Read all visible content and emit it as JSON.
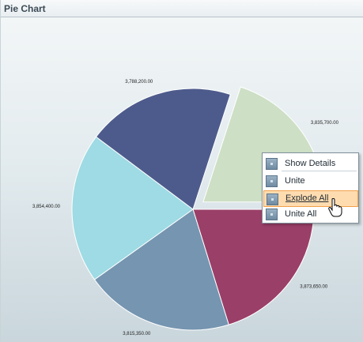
{
  "panel": {
    "title": "Pie Chart"
  },
  "chart_data": {
    "type": "pie",
    "slices": [
      {
        "label": "3,835,700.00",
        "value": 3835700,
        "color": "#cddfc5",
        "exploded": true
      },
      {
        "label": "3,873,650.00",
        "value": 3873650,
        "color": "#9a3f68",
        "exploded": false
      },
      {
        "label": "3,815,350.00",
        "value": 3815350,
        "color": "#7595b0",
        "exploded": false
      },
      {
        "label": "3,854,400.00",
        "value": 3854400,
        "color": "#9edbe4",
        "exploded": false
      },
      {
        "label": "3,788,200.00",
        "value": 3788200,
        "color": "#4d5b8c",
        "exploded": false
      }
    ]
  },
  "context_menu": {
    "items": [
      {
        "label": "Show Details",
        "icon": "show-details-icon",
        "highlighted": false
      },
      {
        "label": "Unite",
        "icon": "unite-icon",
        "highlighted": false
      },
      {
        "label": "Explode All",
        "icon": "explode-all-icon",
        "highlighted": true
      },
      {
        "label": "Unite All",
        "icon": "unite-all-icon",
        "highlighted": false
      }
    ]
  }
}
